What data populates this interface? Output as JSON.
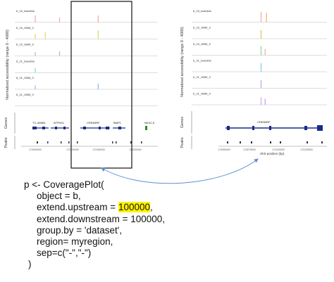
{
  "left_plot": {
    "ylabel": "Normalized accessibility (range 0 - 4000)",
    "tracks": [
      {
        "label": "6_15_baseline",
        "peaks": [
          {
            "x": 0.14,
            "h": 0.55,
            "color": "#f4a6b4"
          },
          {
            "x": 0.31,
            "h": 0.4,
            "color": "#f4a6b4"
          },
          {
            "x": 0.58,
            "h": 0.55,
            "color": "#f4a6b4"
          }
        ]
      },
      {
        "label": "6_15_GBM_3",
        "peaks": [
          {
            "x": 0.14,
            "h": 0.4,
            "color": "#e0d76a"
          },
          {
            "x": 0.21,
            "h": 0.55,
            "color": "#e0d76a"
          },
          {
            "x": 0.58,
            "h": 0.7,
            "color": "#e0d76a"
          }
        ]
      },
      {
        "label": "6_15_GBM_9",
        "peaks": [
          {
            "x": 0.14,
            "h": 0.3,
            "color": "#8fd18f"
          },
          {
            "x": 0.31,
            "h": 0.35,
            "color": "#8fd18f"
          }
        ]
      },
      {
        "label": "6_21_baseline",
        "peaks": [
          {
            "x": 0.14,
            "h": 0.35,
            "color": "#7fd6c9"
          }
        ]
      },
      {
        "label": "6_21_GBM_3",
        "peaks": [
          {
            "x": 0.14,
            "h": 0.3,
            "color": "#8ab8e8"
          },
          {
            "x": 0.58,
            "h": 0.45,
            "color": "#8ab8e8"
          }
        ]
      },
      {
        "label": "6_21_GBM_9",
        "peaks": []
      }
    ],
    "genes_label": "Genes",
    "peaks_label": "Peaks",
    "gene_names": [
      "TC-4N0B1",
      "ATP5G1",
      "CREB3RF",
      "BMP1",
      "NKX2-5"
    ],
    "axis_ticks": [
      "173050000",
      "173100000",
      "173150000",
      "173200000"
    ]
  },
  "right_plot": {
    "ylabel": "Normalized accessibility (range 0 - 4000)",
    "tracks": [
      {
        "label": "6_15_baseline",
        "peaks": [
          {
            "x": 0.51,
            "h": 0.85,
            "color": "#f4a6b4"
          },
          {
            "x": 0.55,
            "h": 0.75,
            "color": "#f0b070"
          }
        ]
      },
      {
        "label": "6_15_GBM_3",
        "peaks": [
          {
            "x": 0.51,
            "h": 0.7,
            "color": "#e0c060"
          }
        ]
      },
      {
        "label": "6_15_GBM_9",
        "peaks": [
          {
            "x": 0.51,
            "h": 0.75,
            "color": "#8fd18f"
          },
          {
            "x": 0.54,
            "h": 0.5,
            "color": "#f4a6b4"
          }
        ]
      },
      {
        "label": "6_21_baseline",
        "peaks": [
          {
            "x": 0.51,
            "h": 0.7,
            "color": "#7fc8e0"
          }
        ]
      },
      {
        "label": "6_21_GBM_3",
        "peaks": [
          {
            "x": 0.51,
            "h": 0.65,
            "color": "#c0a0e8"
          }
        ]
      },
      {
        "label": "6_21_GBM_9",
        "peaks": [
          {
            "x": 0.51,
            "h": 0.6,
            "color": "#d8a0e8"
          },
          {
            "x": 0.54,
            "h": 0.5,
            "color": "#c0a0e8"
          }
        ]
      }
    ],
    "genes_label": "Genes",
    "peaks_label": "Peaks",
    "gene_names": [
      "CREB3RF"
    ],
    "axis_ticks": [
      "173050000",
      "173075000",
      "173100000",
      "173125000"
    ],
    "xlabel": "chr5 position (bp)"
  },
  "code": {
    "line1": "p <- CoveragePlot(",
    "line2": "object = b,",
    "line3_pre": "extend.upstream = ",
    "line3_value": "100000",
    "line3_post": ",",
    "line4": "extend.downstream = 100000,",
    "line5": "group.by = 'dataset',",
    "line6": "region= myregion,",
    "line7": "sep=c(\"-\",\"-\")",
    "line8": ")"
  },
  "colors": {
    "highlight": "#fff200",
    "arrow": "#5b8fd0",
    "gene_track": "#1a2a8a"
  }
}
